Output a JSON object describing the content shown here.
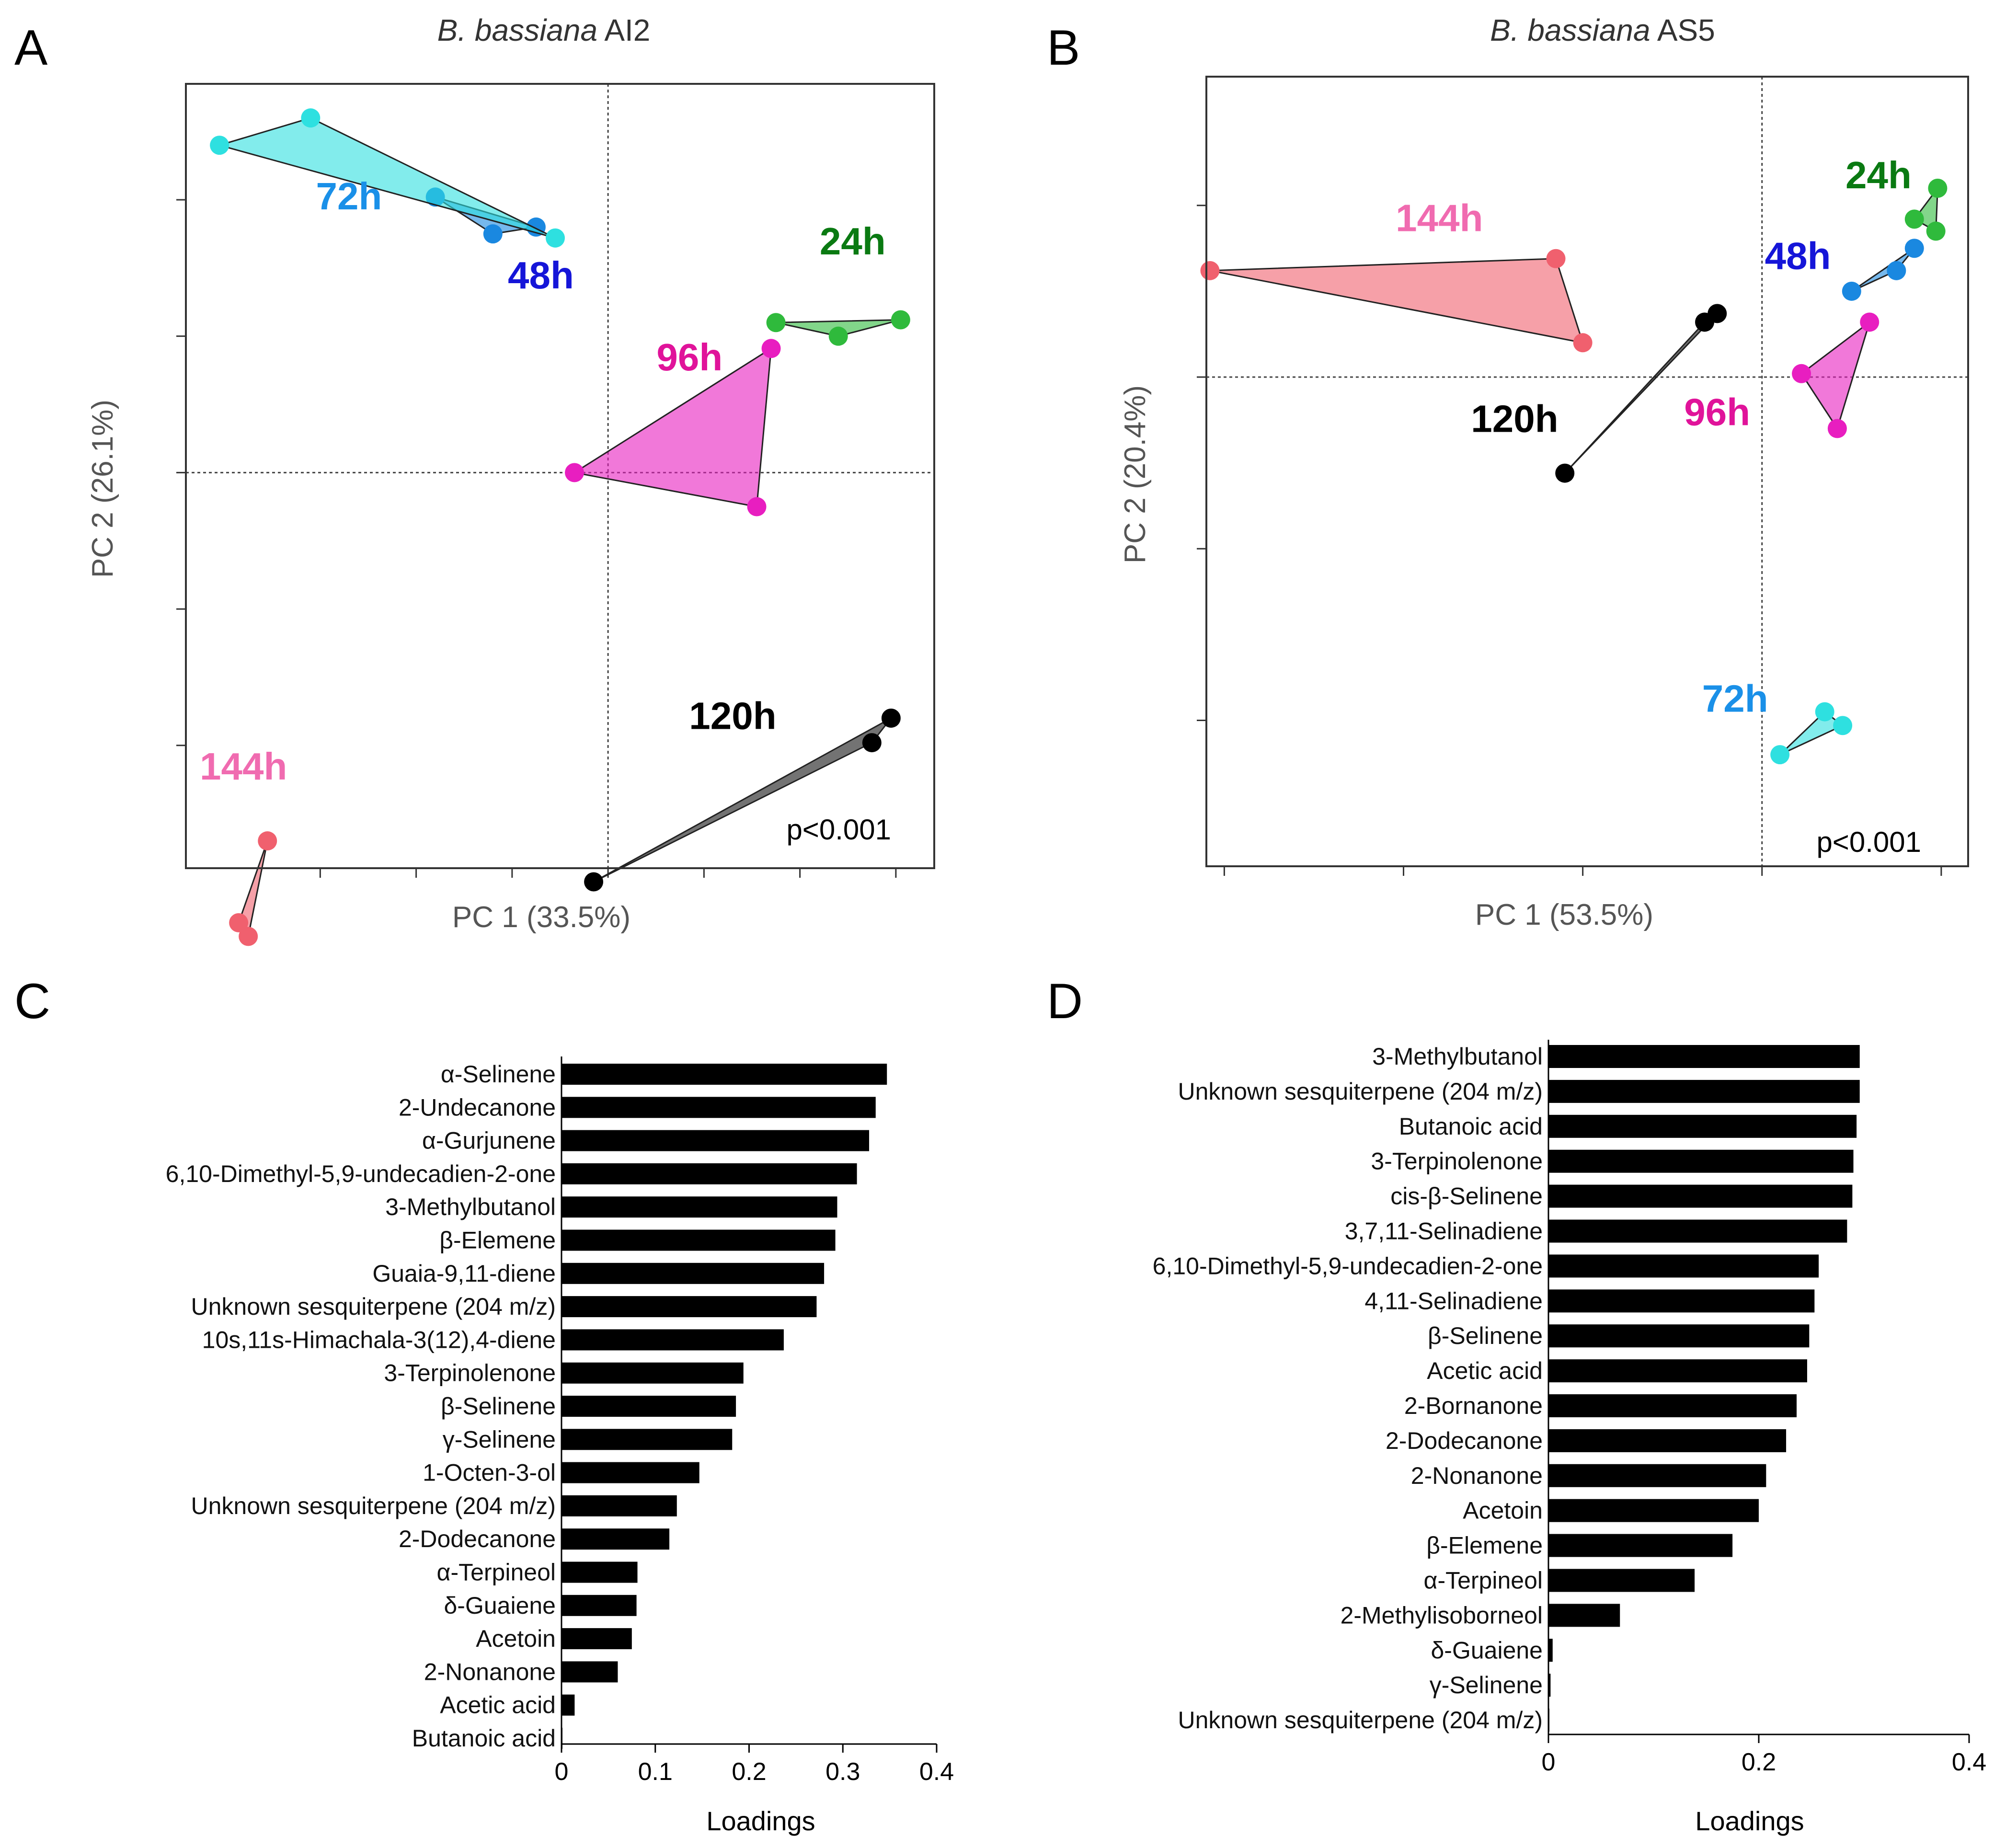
{
  "panels": {
    "A": "A",
    "B": "B",
    "C": "C",
    "D": "D"
  },
  "chart_data": [
    {
      "panel": "A",
      "type": "scatter",
      "title_italic": "B. bassiana",
      "title_rest": " AI2",
      "xlabel_main": "PC 1",
      "xlabel_pct": " (33.5%)",
      "ylabel_main": "PC 2",
      "ylabel_pct": " (26.1%)",
      "xlim": [
        -4.4,
        3.4
      ],
      "ylim": [
        -2.9,
        2.85
      ],
      "xticks": [
        -3,
        -2,
        -1,
        0,
        1,
        2,
        3
      ],
      "yticks": [
        -3,
        -2,
        -1,
        0,
        1,
        2
      ],
      "zero_lines": true,
      "annotation": "p<0.001",
      "groups": [
        {
          "label": "24h",
          "color": "#2fba3c",
          "label_color": "#0a7a12",
          "points": [
            [
              1.75,
              1.1
            ],
            [
              2.4,
              1.0
            ],
            [
              3.05,
              1.12
            ]
          ],
          "label_pos": [
            2.55,
            1.6
          ]
        },
        {
          "label": "48h",
          "color": "#1a88e0",
          "label_color": "#1515d8",
          "points": [
            [
              -1.8,
              2.02
            ],
            [
              -1.2,
              1.75
            ],
            [
              -0.75,
              1.8
            ]
          ],
          "label_pos": [
            -0.7,
            1.35
          ]
        },
        {
          "label": "72h",
          "color": "#2ee0e0",
          "label_color": "#1a90e8",
          "points": [
            [
              -4.05,
              2.4
            ],
            [
              -3.1,
              2.6
            ],
            [
              -0.55,
              1.72
            ]
          ],
          "label_pos": [
            -2.7,
            1.93
          ]
        },
        {
          "label": "96h",
          "color": "#e81ec0",
          "label_color": "#e0139a",
          "points": [
            [
              1.7,
              0.91
            ],
            [
              -0.35,
              0.0
            ],
            [
              1.55,
              -0.25
            ]
          ],
          "label_pos": [
            0.85,
            0.75
          ]
        },
        {
          "label": "120h",
          "color": "#000000",
          "label_color": "#000000",
          "points": [
            [
              -0.15,
              -3.0
            ],
            [
              2.75,
              -1.98
            ],
            [
              2.95,
              -1.8
            ]
          ],
          "label_pos": [
            1.3,
            -1.88
          ]
        },
        {
          "label": "144h",
          "color": "#f0606e",
          "label_color": "#f06bb0",
          "points": [
            [
              -3.55,
              -2.7
            ],
            [
              -3.85,
              -3.3
            ],
            [
              -3.75,
              -3.4
            ]
          ],
          "label_pos": [
            -3.8,
            -2.25
          ]
        }
      ]
    },
    {
      "panel": "B",
      "type": "scatter",
      "title_italic": "B. bassiana",
      "title_rest": " AS5",
      "xlabel_main": "PC 1",
      "xlabel_pct": " (53.5%)",
      "ylabel_main": "PC 2",
      "ylabel_pct": " (20.4%)",
      "xlim": [
        -3.1,
        1.15
      ],
      "ylim": [
        -2.85,
        1.75
      ],
      "xticks": [
        -3,
        -2,
        -1,
        0,
        1
      ],
      "yticks": [
        -2,
        -1,
        0,
        1
      ],
      "zero_lines": true,
      "annotation": "p<0.001",
      "groups": [
        {
          "label": "24h",
          "color": "#2fba3c",
          "label_color": "#0a7a12",
          "points": [
            [
              0.85,
              0.92
            ],
            [
              0.98,
              1.1
            ],
            [
              0.97,
              0.85
            ]
          ],
          "label_pos": [
            0.65,
            1.1
          ]
        },
        {
          "label": "48h",
          "color": "#1a88e0",
          "label_color": "#1515d8",
          "points": [
            [
              0.5,
              0.5
            ],
            [
              0.75,
              0.62
            ],
            [
              0.85,
              0.75
            ]
          ],
          "label_pos": [
            0.2,
            0.63
          ]
        },
        {
          "label": "72h",
          "color": "#2ee0e0",
          "label_color": "#1a90e8",
          "points": [
            [
              0.1,
              -2.2
            ],
            [
              0.35,
              -1.95
            ],
            [
              0.45,
              -2.03
            ]
          ],
          "label_pos": [
            -0.15,
            -1.95
          ]
        },
        {
          "label": "96h",
          "color": "#e81ec0",
          "label_color": "#e0139a",
          "points": [
            [
              0.22,
              0.02
            ],
            [
              0.6,
              0.32
            ],
            [
              0.42,
              -0.3
            ]
          ],
          "label_pos": [
            -0.25,
            -0.28
          ]
        },
        {
          "label": "120h",
          "color": "#000000",
          "label_color": "#000000",
          "points": [
            [
              -1.1,
              -0.56
            ],
            [
              -0.32,
              0.32
            ],
            [
              -0.25,
              0.37
            ]
          ],
          "label_pos": [
            -1.38,
            -0.32
          ]
        },
        {
          "label": "144h",
          "color": "#f0606e",
          "label_color": "#f06bb0",
          "points": [
            [
              -3.08,
              0.62
            ],
            [
              -1.15,
              0.69
            ],
            [
              -1.0,
              0.2
            ]
          ],
          "label_pos": [
            -1.8,
            0.85
          ]
        }
      ]
    },
    {
      "panel": "C",
      "type": "bar",
      "orientation": "horizontal",
      "xlabel": "Loadings",
      "xlim": [
        0,
        0.4
      ],
      "xticks": [
        "0",
        "0.1",
        "0.2",
        "0.3",
        "0.4"
      ],
      "categories": [
        "α-Selinene",
        "2-Undecanone",
        "α-Gurjunene",
        "6,10-Dimethyl-5,9-undecadien-2-one",
        "3-Methylbutanol",
        "β-Elemene",
        "Guaia-9,11-diene",
        "Unknown sesquiterpene (204 m/z)",
        "10s,11s-Himachala-3(12),4-diene",
        "3-Terpinolenone",
        "β-Selinene",
        "γ-Selinene",
        "1-Octen-3-ol",
        "Unknown sesquiterpene (204 m/z)",
        "2-Dodecanone",
        "α-Terpineol",
        "δ-Guaiene",
        "Acetoin",
        "2-Nonanone",
        "Acetic acid",
        "Butanoic acid"
      ],
      "values": [
        0.347,
        0.335,
        0.328,
        0.315,
        0.294,
        0.292,
        0.28,
        0.272,
        0.237,
        0.194,
        0.186,
        0.182,
        0.147,
        0.123,
        0.115,
        0.081,
        0.08,
        0.075,
        0.06,
        0.014,
        0.001
      ]
    },
    {
      "panel": "D",
      "type": "bar",
      "orientation": "horizontal",
      "xlabel": "Loadings",
      "xlim": [
        0,
        0.4
      ],
      "xticks": [
        "0",
        "0.2",
        "0.4"
      ],
      "categories": [
        "3-Methylbutanol",
        "Unknown sesquiterpene (204 m/z)",
        "Butanoic acid",
        "3-Terpinolenone",
        "cis-β-Selinene",
        "3,7,11-Selinadiene",
        "6,10-Dimethyl-5,9-undecadien-2-one",
        "4,11-Selinadiene",
        "β-Selinene",
        "Acetic acid",
        "2-Bornanone",
        "2-Dodecanone",
        "2-Nonanone",
        "Acetoin",
        "β-Elemene",
        "α-Terpineol",
        "2-Methylisoborneol",
        "δ-Guaiene",
        "γ-Selinene",
        "Unknown sesquiterpene (204 m/z)"
      ],
      "values": [
        0.296,
        0.296,
        0.293,
        0.29,
        0.289,
        0.284,
        0.257,
        0.253,
        0.248,
        0.246,
        0.236,
        0.226,
        0.207,
        0.2,
        0.175,
        0.139,
        0.068,
        0.004,
        0.002,
        0.0
      ]
    }
  ]
}
